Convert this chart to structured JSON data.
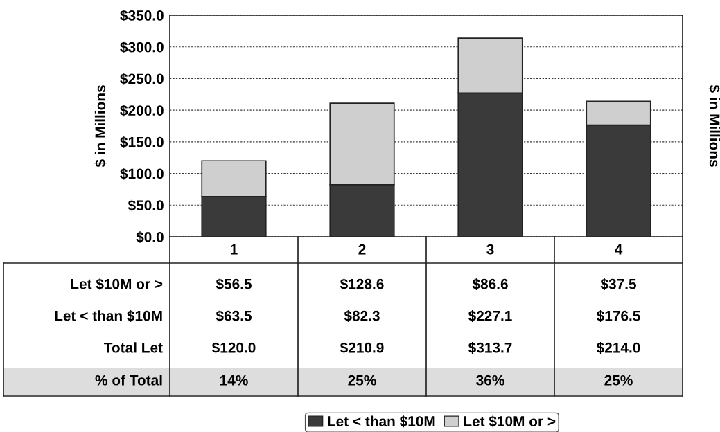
{
  "chart_data": {
    "type": "bar",
    "stacked": true,
    "categories": [
      "1",
      "2",
      "3",
      "4"
    ],
    "series": [
      {
        "name": "Let < than $10M",
        "color": "#3a3a3a",
        "values": [
          63.5,
          82.3,
          227.1,
          176.5
        ],
        "value_labels": [
          "$63.5",
          "$82.3",
          "$227.1",
          "$176.5"
        ]
      },
      {
        "name": "Let $10M or >",
        "color": "#cfcfcf",
        "values": [
          56.5,
          128.6,
          86.6,
          37.5
        ],
        "value_labels": [
          "$56.5",
          "$128.6",
          "$86.6",
          "$37.5"
        ]
      }
    ],
    "annotations": [
      "Total Let",
      "$120.0",
      "$210.9",
      "$313.7",
      "$214.0",
      "% of Total",
      "14%",
      "25%",
      "36%",
      "25%"
    ],
    "ylabel": "$ in Millions",
    "y2label": "$ in Millions",
    "ylim": [
      0,
      350
    ],
    "yticks": [
      {
        "value": 0,
        "label": "$0.0"
      },
      {
        "value": 50,
        "label": "$50.0"
      },
      {
        "value": 100,
        "label": "$100.0"
      },
      {
        "value": 150,
        "label": "$150.0"
      },
      {
        "value": 200,
        "label": "$200.0"
      },
      {
        "value": 250,
        "label": "$250.0"
      },
      {
        "value": 300,
        "label": "$300.0"
      },
      {
        "value": 350,
        "label": "$350.0"
      }
    ],
    "grid": "y",
    "legend": "bottom"
  }
}
